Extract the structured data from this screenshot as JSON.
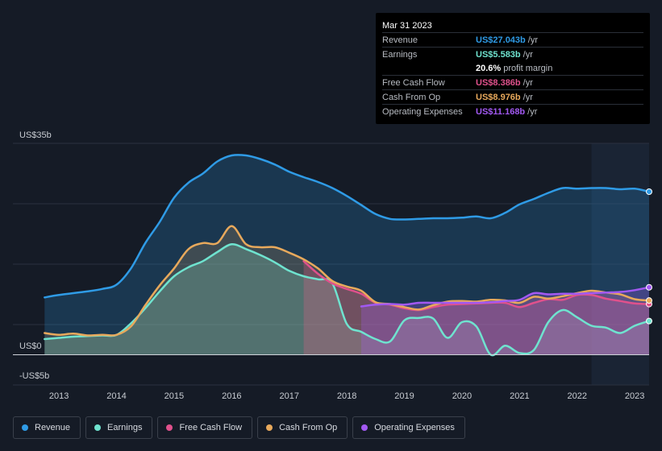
{
  "tooltip": {
    "date": "Mar 31 2023",
    "rows": [
      {
        "name": "Revenue",
        "value": "US$27.043b",
        "unit": "/yr",
        "color": "#2f9be6"
      },
      {
        "name": "Earnings",
        "value": "US$5.583b",
        "unit": "/yr",
        "color": "#6fe3cf"
      },
      {
        "name": "",
        "value": "20.6%",
        "unit": "profit margin",
        "color": "#ffffff"
      },
      {
        "name": "Free Cash Flow",
        "value": "US$8.386b",
        "unit": "/yr",
        "color": "#e0518c"
      },
      {
        "name": "Cash From Op",
        "value": "US$8.976b",
        "unit": "/yr",
        "color": "#e8a95c"
      },
      {
        "name": "Operating Expenses",
        "value": "US$11.168b",
        "unit": "/yr",
        "color": "#a259f2"
      }
    ]
  },
  "legend": [
    {
      "label": "Revenue",
      "color": "#2f9be6"
    },
    {
      "label": "Earnings",
      "color": "#6fe3cf"
    },
    {
      "label": "Free Cash Flow",
      "color": "#e0518c"
    },
    {
      "label": "Cash From Op",
      "color": "#e8a95c"
    },
    {
      "label": "Operating Expenses",
      "color": "#a259f2"
    }
  ],
  "chart_data": {
    "type": "area",
    "title": "",
    "xlabel": "",
    "ylabel": "",
    "y_tick_labels": [
      "US$35b",
      "US$0",
      "-US$5b"
    ],
    "x_tick_labels": [
      "2013",
      "2014",
      "2015",
      "2016",
      "2017",
      "2018",
      "2019",
      "2020",
      "2021",
      "2022",
      "2023"
    ],
    "xlim": [
      2012.2,
      2023.25
    ],
    "ylim": [
      -5,
      35
    ],
    "forecast_shade_from": 2022.25,
    "series": [
      {
        "name": "Revenue",
        "color": "#2f9be6",
        "x": [
          2012.75,
          2013.0,
          2013.25,
          2013.5,
          2013.75,
          2014.0,
          2014.25,
          2014.5,
          2014.75,
          2015.0,
          2015.25,
          2015.5,
          2015.75,
          2016.0,
          2016.25,
          2016.5,
          2016.75,
          2017.0,
          2017.25,
          2017.5,
          2017.75,
          2018.0,
          2018.25,
          2018.5,
          2018.75,
          2019.0,
          2019.25,
          2019.5,
          2019.75,
          2020.0,
          2020.25,
          2020.5,
          2020.75,
          2021.0,
          2021.25,
          2021.5,
          2021.75,
          2022.0,
          2022.25,
          2022.5,
          2022.75,
          2023.0,
          2023.25
        ],
        "values": [
          9.5,
          9.9,
          10.2,
          10.5,
          10.9,
          11.6,
          14.3,
          18.5,
          22.0,
          26.0,
          28.5,
          30.0,
          32.0,
          33.0,
          33.0,
          32.4,
          31.5,
          30.3,
          29.4,
          28.6,
          27.6,
          26.3,
          24.8,
          23.3,
          22.5,
          22.4,
          22.5,
          22.6,
          22.6,
          22.7,
          22.9,
          22.6,
          23.5,
          24.9,
          25.8,
          26.8,
          27.6,
          27.5,
          27.6,
          27.6,
          27.4,
          27.5,
          27.0
        ]
      },
      {
        "name": "Earnings",
        "color": "#6fe3cf",
        "x": [
          2012.75,
          2013.0,
          2013.25,
          2013.5,
          2013.75,
          2014.0,
          2014.25,
          2014.5,
          2014.75,
          2015.0,
          2015.25,
          2015.5,
          2015.75,
          2016.0,
          2016.25,
          2016.5,
          2016.75,
          2017.0,
          2017.25,
          2017.5,
          2017.75,
          2018.0,
          2018.25,
          2018.5,
          2018.75,
          2019.0,
          2019.25,
          2019.5,
          2019.75,
          2020.0,
          2020.25,
          2020.5,
          2020.75,
          2021.0,
          2021.25,
          2021.5,
          2021.75,
          2022.0,
          2022.25,
          2022.5,
          2022.75,
          2023.0,
          2023.25
        ],
        "values": [
          2.6,
          2.8,
          3.0,
          3.1,
          3.2,
          3.3,
          5.2,
          7.7,
          10.5,
          13.0,
          14.5,
          15.5,
          17.0,
          18.3,
          17.5,
          16.5,
          15.3,
          13.9,
          13.0,
          12.5,
          11.8,
          5.1,
          3.8,
          2.6,
          2.2,
          5.7,
          6.1,
          6.0,
          2.8,
          5.4,
          4.7,
          0.0,
          1.5,
          0.3,
          0.8,
          5.4,
          7.4,
          6.2,
          4.8,
          4.5,
          3.6,
          4.8,
          5.583
        ]
      },
      {
        "name": "Free Cash Flow",
        "color": "#e0518c",
        "x": [
          2017.25,
          2017.5,
          2017.75,
          2018.0,
          2018.25,
          2018.5,
          2018.75,
          2019.0,
          2019.25,
          2019.5,
          2019.75,
          2020.0,
          2020.25,
          2020.5,
          2020.75,
          2021.0,
          2021.25,
          2021.5,
          2021.75,
          2022.0,
          2022.25,
          2022.5,
          2022.75,
          2023.0,
          2023.25
        ],
        "values": [
          15.5,
          13.4,
          11.8,
          10.9,
          10.1,
          8.6,
          8.3,
          7.7,
          7.4,
          7.9,
          8.3,
          8.4,
          8.5,
          8.6,
          8.6,
          7.9,
          8.6,
          9.2,
          9.1,
          9.9,
          9.9,
          9.3,
          8.9,
          8.5,
          8.386
        ]
      },
      {
        "name": "Cash From Op",
        "color": "#e8a95c",
        "x": [
          2012.75,
          2013.0,
          2013.25,
          2013.5,
          2013.75,
          2014.0,
          2014.25,
          2014.5,
          2014.75,
          2015.0,
          2015.25,
          2015.5,
          2015.75,
          2016.0,
          2016.25,
          2016.5,
          2016.75,
          2017.0,
          2017.25,
          2017.5,
          2017.75,
          2018.0,
          2018.25,
          2018.5,
          2018.75,
          2019.0,
          2019.25,
          2019.5,
          2019.75,
          2020.0,
          2020.25,
          2020.5,
          2020.75,
          2021.0,
          2021.25,
          2021.5,
          2021.75,
          2022.0,
          2022.25,
          2022.5,
          2022.75,
          2023.0,
          2023.25
        ],
        "values": [
          3.6,
          3.3,
          3.5,
          3.2,
          3.3,
          3.3,
          4.7,
          8.2,
          11.5,
          14.3,
          17.5,
          18.5,
          18.5,
          21.3,
          18.3,
          17.8,
          17.8,
          16.9,
          15.8,
          14.3,
          12.2,
          11.3,
          10.6,
          8.7,
          8.4,
          7.9,
          7.5,
          8.2,
          8.8,
          8.9,
          8.8,
          9.1,
          9.0,
          8.6,
          9.6,
          9.3,
          9.7,
          10.2,
          10.6,
          10.3,
          10.0,
          9.2,
          8.976
        ]
      },
      {
        "name": "Operating Expenses",
        "color": "#a259f2",
        "x": [
          2018.25,
          2018.5,
          2018.75,
          2019.0,
          2019.25,
          2019.5,
          2019.75,
          2020.0,
          2020.25,
          2020.5,
          2020.75,
          2021.0,
          2021.25,
          2021.5,
          2021.75,
          2022.0,
          2022.25,
          2022.5,
          2022.75,
          2023.0,
          2023.25
        ],
        "values": [
          8.0,
          8.3,
          8.4,
          8.3,
          8.6,
          8.6,
          8.6,
          8.6,
          8.6,
          8.7,
          8.9,
          9.1,
          10.2,
          10.0,
          10.1,
          10.1,
          10.2,
          10.3,
          10.4,
          10.7,
          11.168
        ]
      }
    ]
  }
}
